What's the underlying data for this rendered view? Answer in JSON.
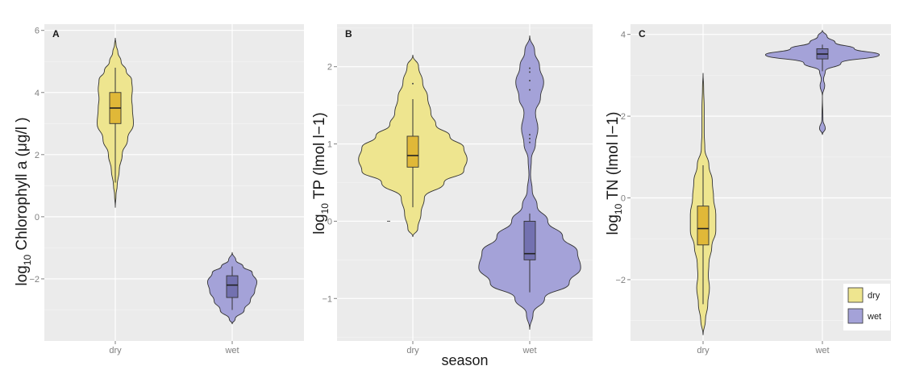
{
  "chart_data": [
    {
      "type": "violin",
      "panel_label": "A",
      "ylabel_prefix": "log",
      "ylabel_sub": "10",
      "ylabel_main": " Chlorophyll a (μg/l )",
      "categories": [
        "dry",
        "wet"
      ],
      "yticks": [
        -2,
        0,
        2,
        4,
        6
      ],
      "ytick_labels": [
        "−2",
        "0",
        "2",
        "4",
        "6"
      ],
      "ylim": [
        -4.0,
        6.2
      ],
      "grid": true,
      "groups": [
        {
          "name": "dry",
          "box": {
            "q1": 3.0,
            "median": 3.5,
            "q3": 4.0,
            "whisker_low": 1.1,
            "whisker_high": 4.8
          },
          "outliers": [],
          "profile": [
            [
              0.3,
              0.0
            ],
            [
              0.7,
              0.02
            ],
            [
              1.0,
              0.05
            ],
            [
              1.5,
              0.11
            ],
            [
              2.0,
              0.19
            ],
            [
              2.5,
              0.34
            ],
            [
              3.0,
              0.5
            ],
            [
              3.5,
              0.47
            ],
            [
              3.8,
              0.45
            ],
            [
              4.1,
              0.47
            ],
            [
              4.4,
              0.45
            ],
            [
              4.7,
              0.3
            ],
            [
              5.0,
              0.16
            ],
            [
              5.3,
              0.07
            ],
            [
              5.55,
              0.02
            ],
            [
              5.75,
              0.0
            ]
          ]
        },
        {
          "name": "wet",
          "box": {
            "q1": -2.6,
            "median": -2.2,
            "q3": -1.9,
            "whisker_low": -3.0,
            "whisker_high": -1.6
          },
          "outliers": [],
          "profile": [
            [
              -3.45,
              0.0
            ],
            [
              -3.3,
              0.08
            ],
            [
              -3.0,
              0.33
            ],
            [
              -2.7,
              0.5
            ],
            [
              -2.4,
              0.62
            ],
            [
              -2.1,
              0.68
            ],
            [
              -1.8,
              0.55
            ],
            [
              -1.6,
              0.3
            ],
            [
              -1.4,
              0.1
            ],
            [
              -1.15,
              0.0
            ]
          ]
        }
      ]
    },
    {
      "type": "violin",
      "panel_label": "B",
      "ylabel_prefix": "log",
      "ylabel_sub": "10",
      "ylabel_main": " TP (lmol l−1)",
      "xlabel": "season",
      "categories": [
        "dry",
        "wet"
      ],
      "yticks": [
        -1,
        0,
        1,
        2
      ],
      "ytick_labels": [
        "−1",
        "0",
        "1",
        "2"
      ],
      "ylim": [
        -1.55,
        2.55
      ],
      "grid": true,
      "groups": [
        {
          "name": "dry",
          "box": {
            "q1": 0.7,
            "median": 0.85,
            "q3": 1.1,
            "whisker_low": 0.18,
            "whisker_high": 1.58
          },
          "outliers": [
            1.78
          ],
          "profile": [
            [
              -0.2,
              0.0
            ],
            [
              -0.1,
              0.06
            ],
            [
              0.1,
              0.1
            ],
            [
              0.3,
              0.14
            ],
            [
              0.5,
              0.38
            ],
            [
              0.65,
              0.62
            ],
            [
              0.8,
              0.66
            ],
            [
              0.95,
              0.62
            ],
            [
              1.1,
              0.45
            ],
            [
              1.25,
              0.28
            ],
            [
              1.4,
              0.22
            ],
            [
              1.6,
              0.18
            ],
            [
              1.8,
              0.12
            ],
            [
              2.0,
              0.07
            ],
            [
              2.15,
              0.0
            ]
          ]
        },
        {
          "name": "wet",
          "box": {
            "q1": -0.5,
            "median": -0.42,
            "q3": 0.0,
            "whisker_low": -0.92,
            "whisker_high": 0.1
          },
          "outliers": [
            1.98,
            1.93,
            1.82,
            1.7,
            1.12,
            1.07,
            1.02
          ],
          "profile": [
            [
              -1.4,
              0.0
            ],
            [
              -1.2,
              0.04
            ],
            [
              -1.0,
              0.18
            ],
            [
              -0.8,
              0.48
            ],
            [
              -0.6,
              0.62
            ],
            [
              -0.4,
              0.58
            ],
            [
              -0.2,
              0.4
            ],
            [
              0.0,
              0.22
            ],
            [
              0.2,
              0.09
            ],
            [
              0.4,
              0.03
            ],
            [
              0.6,
              0.01
            ],
            [
              0.8,
              0.02
            ],
            [
              1.0,
              0.07
            ],
            [
              1.2,
              0.1
            ],
            [
              1.4,
              0.07
            ],
            [
              1.6,
              0.13
            ],
            [
              1.8,
              0.17
            ],
            [
              2.0,
              0.12
            ],
            [
              2.2,
              0.06
            ],
            [
              2.4,
              0.0
            ]
          ]
        }
      ]
    },
    {
      "type": "violin",
      "panel_label": "C",
      "ylabel_prefix": "log",
      "ylabel_sub": "10",
      "ylabel_main": " TN (lmol l−1)",
      "categories": [
        "dry",
        "wet"
      ],
      "yticks": [
        -2,
        0,
        2,
        4
      ],
      "ytick_labels": [
        "−2",
        "0",
        "2",
        "4"
      ],
      "ylim": [
        -3.5,
        4.25
      ],
      "grid": true,
      "legend": {
        "position": "bottom-right",
        "entries": [
          "dry",
          "wet"
        ]
      },
      "groups": [
        {
          "name": "dry",
          "box": {
            "q1": -1.15,
            "median": -0.75,
            "q3": -0.2,
            "whisker_low": -2.6,
            "whisker_high": 0.8
          },
          "outliers": [],
          "profile": [
            [
              -3.35,
              0.0
            ],
            [
              -3.0,
              0.04
            ],
            [
              -2.6,
              0.08
            ],
            [
              -2.2,
              0.11
            ],
            [
              -1.9,
              0.09
            ],
            [
              -1.6,
              0.1
            ],
            [
              -1.2,
              0.15
            ],
            [
              -0.8,
              0.22
            ],
            [
              -0.4,
              0.22
            ],
            [
              0.0,
              0.18
            ],
            [
              0.4,
              0.16
            ],
            [
              0.8,
              0.1
            ],
            [
              1.2,
              0.03
            ],
            [
              1.6,
              0.02
            ],
            [
              2.2,
              0.02
            ],
            [
              2.7,
              0.01
            ],
            [
              3.05,
              0.0
            ]
          ]
        },
        {
          "name": "wet",
          "box": {
            "q1": 3.4,
            "median": 3.52,
            "q3": 3.65,
            "whisker_low": 3.1,
            "whisker_high": 3.75
          },
          "outliers": [],
          "profile": [
            [
              1.55,
              0.0
            ],
            [
              1.7,
              0.05
            ],
            [
              1.9,
              0.01
            ],
            [
              2.5,
              0.0
            ],
            [
              2.75,
              0.04
            ],
            [
              2.9,
              0.02
            ],
            [
              3.1,
              0.05
            ],
            [
              3.3,
              0.32
            ],
            [
              3.5,
              0.98
            ],
            [
              3.65,
              0.55
            ],
            [
              3.8,
              0.22
            ],
            [
              3.95,
              0.08
            ],
            [
              4.1,
              0.0
            ]
          ]
        }
      ]
    }
  ],
  "colors": {
    "dry": "#eee58f",
    "wet": "#a4a2d8",
    "dry_box": "#e0b838",
    "wet_box": "#7371b0",
    "panel_bg": "#ebebeb",
    "grid": "#ffffff",
    "outline": "#333333"
  },
  "legend": {
    "entries": [
      "dry",
      "wet"
    ]
  }
}
